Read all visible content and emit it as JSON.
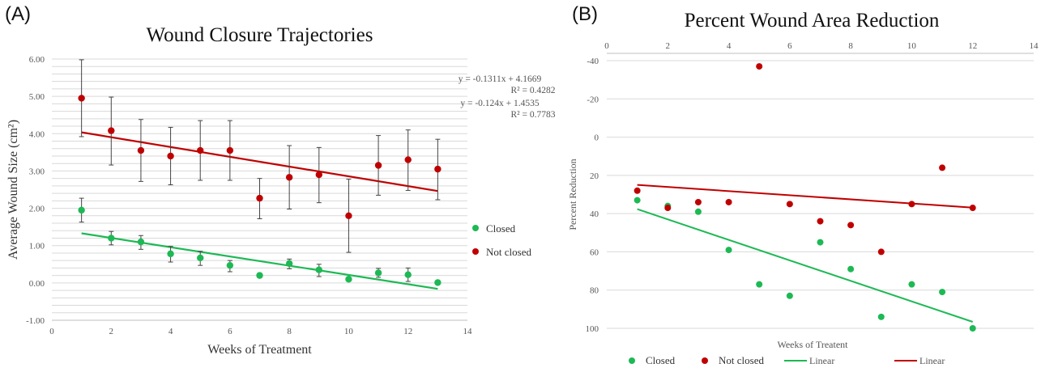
{
  "panels": {
    "a_label": "(A)",
    "b_label": "(B)"
  },
  "colors": {
    "closed": "#1db954",
    "not_closed": "#c00000",
    "grid": "#d9d9d9",
    "errbar": "#444444"
  },
  "chart_data": [
    {
      "type": "scatter",
      "title": "Wound Closure Trajectories",
      "xlabel": "Weeks of Treatment",
      "ylabel": "Average Wound Size (cm²)",
      "xlim": [
        0,
        14
      ],
      "ylim": [
        -1,
        6
      ],
      "xticks": [
        "0",
        "2",
        "4",
        "6",
        "8",
        "10",
        "12",
        "14"
      ],
      "yticks": [
        "-1.00",
        "0.00",
        "1.00",
        "2.00",
        "3.00",
        "4.00",
        "5.00",
        "6.00"
      ],
      "grid": true,
      "series": [
        {
          "name": "Closed",
          "color": "#1db954",
          "x": [
            1,
            2,
            3,
            4,
            5,
            6,
            7,
            8,
            9,
            10,
            11,
            12,
            13
          ],
          "y": [
            1.95,
            1.2,
            1.1,
            0.78,
            0.67,
            0.47,
            0.2,
            0.52,
            0.35,
            0.1,
            0.27,
            0.22,
            0.01
          ],
          "err_low": [
            0.32,
            0.18,
            0.2,
            0.22,
            0.2,
            0.17,
            0.06,
            0.14,
            0.18,
            0.05,
            0.12,
            0.18,
            0.02
          ],
          "err_high": [
            0.32,
            0.18,
            0.17,
            0.2,
            0.18,
            0.13,
            0.06,
            0.12,
            0.15,
            0.05,
            0.12,
            0.18,
            0.02
          ],
          "trend": {
            "slope": -0.124,
            "intercept": 1.4535
          }
        },
        {
          "name": "Not closed",
          "color": "#c00000",
          "x": [
            1,
            2,
            3,
            4,
            5,
            6,
            7,
            8,
            9,
            10,
            11,
            12,
            13
          ],
          "y": [
            4.95,
            4.08,
            3.55,
            3.4,
            3.55,
            3.55,
            2.27,
            2.83,
            2.9,
            1.8,
            3.15,
            3.3,
            3.05
          ],
          "err_low": [
            1.03,
            0.92,
            0.83,
            0.77,
            0.8,
            0.8,
            0.55,
            0.85,
            0.75,
            0.98,
            0.8,
            0.82,
            0.82
          ],
          "err_high": [
            1.03,
            0.9,
            0.83,
            0.77,
            0.8,
            0.8,
            0.53,
            0.85,
            0.73,
            0.98,
            0.8,
            0.8,
            0.8
          ],
          "trend": {
            "slope": -0.1311,
            "intercept": 4.1669
          }
        }
      ],
      "equations": [
        "y = -0.1311x + 4.1669",
        "R² = 0.4282",
        "y = -0.124x + 1.4535",
        "R² = 0.7783"
      ],
      "legend": {
        "position": "right",
        "items": [
          "Closed",
          "Not closed"
        ]
      }
    },
    {
      "type": "scatter",
      "title": "Percent Wound Area Reduction",
      "xlabel": "Weeks of Treatent",
      "ylabel": "Percent Reduction",
      "xlim": [
        0,
        14
      ],
      "ylim": [
        -40,
        100
      ],
      "y_reversed": true,
      "x_axis_position": "top",
      "xticks": [
        "0",
        "2",
        "4",
        "6",
        "8",
        "10",
        "12",
        "14"
      ],
      "yticks": [
        "-40",
        "-20",
        "0",
        "20",
        "40",
        "60",
        "80",
        "100"
      ],
      "grid": true,
      "series": [
        {
          "name": "Closed",
          "color": "#1db954",
          "x": [
            1,
            2,
            3,
            4,
            5,
            6,
            7,
            8,
            9,
            10,
            11,
            12
          ],
          "y": [
            33,
            36,
            39,
            59,
            77,
            83,
            55,
            69,
            94,
            77,
            81,
            100
          ],
          "trend": {
            "slope": 5.36,
            "intercept": 32.3
          }
        },
        {
          "name": "Not closed",
          "color": "#c00000",
          "x": [
            1,
            2,
            3,
            4,
            5,
            6,
            7,
            8,
            9,
            10,
            11,
            12
          ],
          "y": [
            28,
            37,
            34,
            34,
            -37,
            35,
            44,
            46,
            60,
            35,
            16,
            37
          ],
          "trend": {
            "slope": 1.08,
            "intercept": 23.9
          }
        }
      ],
      "legend": {
        "position": "bottom",
        "items": [
          "Closed",
          "Not closed",
          "Linear",
          "Linear"
        ]
      }
    }
  ]
}
